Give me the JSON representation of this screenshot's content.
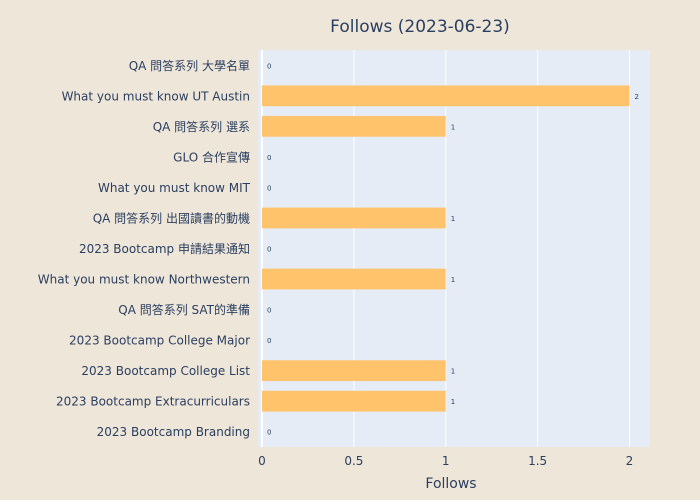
{
  "chart_data": {
    "type": "bar",
    "orientation": "horizontal",
    "title": "Follows (2023-06-23)",
    "xlabel": "Follows",
    "ylabel": "",
    "xlim": [
      0,
      2.1
    ],
    "x_ticks": [
      0,
      0.5,
      1,
      1.5,
      2
    ],
    "x_tick_labels": [
      "0",
      "0.5",
      "1",
      "1.5",
      "2"
    ],
    "grid": true,
    "legend": "none",
    "colors": {
      "bar": "#ffc46b",
      "plot_bg": "#e5ecf6",
      "paper_bg": "#efe6da",
      "text": "#2a3f5f",
      "grid": "#ffffff"
    },
    "categories": [
      "QA 問答系列 大學名單",
      "What you must know UT Austin",
      "QA 問答系列 選系",
      "GLO 合作宣傳",
      "What you must know MIT",
      "QA 問答系列 出國讀書的動機",
      "2023 Bootcamp 申請結果通知",
      "What you must know Northwestern",
      "QA 問答系列 SAT的準備",
      "2023 Bootcamp College Major",
      "2023 Bootcamp College List",
      "2023 Bootcamp Extracurriculars",
      "2023 Bootcamp Branding"
    ],
    "values": [
      0,
      2,
      1,
      0,
      0,
      1,
      0,
      1,
      0,
      0,
      1,
      1,
      0
    ],
    "data_labels": [
      "0",
      "2",
      "1",
      "0",
      "0",
      "1",
      "0",
      "1",
      "0",
      "0",
      "1",
      "1",
      "0"
    ]
  }
}
